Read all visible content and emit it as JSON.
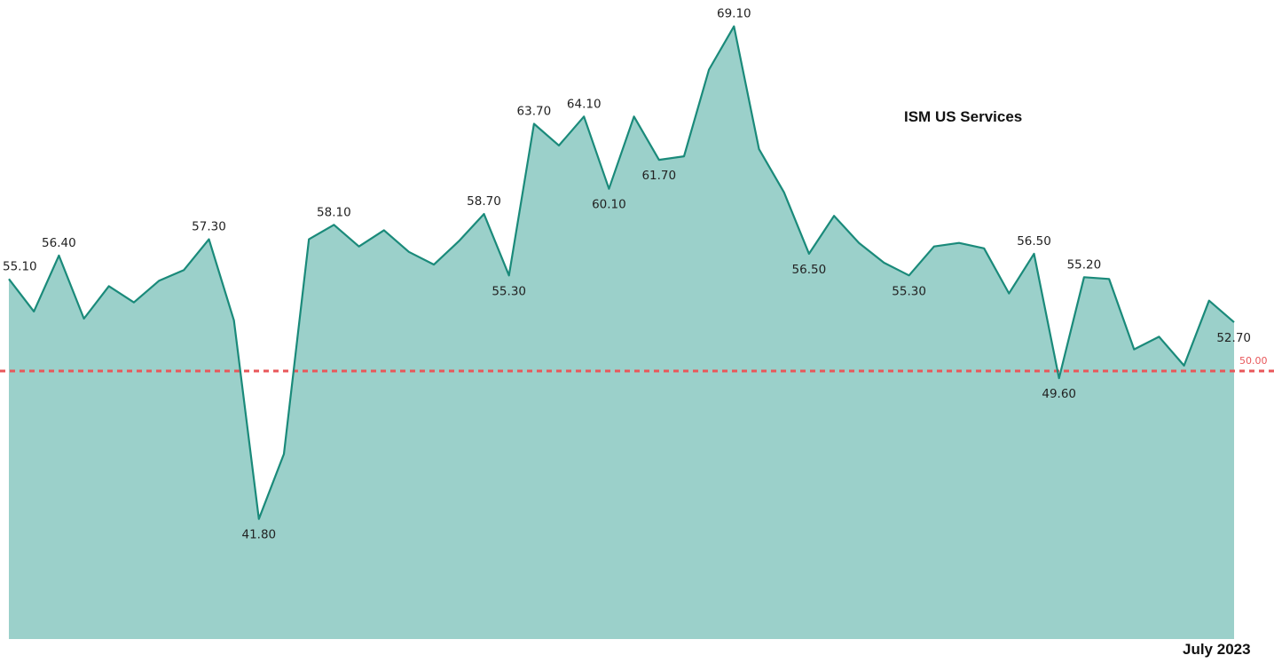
{
  "chart_data": {
    "type": "area",
    "title": "ISM US Services",
    "xlabel": "",
    "ylabel": "",
    "end_date_label": "July 2023",
    "x_start": "2019-08",
    "x_end": "2023-07",
    "ylim": [
      30,
      72
    ],
    "values": [
      55.1,
      53.3,
      56.4,
      52.9,
      54.7,
      53.8,
      55.0,
      55.6,
      57.3,
      52.8,
      41.8,
      45.4,
      57.3,
      58.1,
      56.9,
      57.8,
      56.6,
      55.9,
      57.2,
      58.7,
      55.3,
      63.7,
      62.5,
      64.1,
      60.1,
      64.1,
      61.7,
      61.9,
      66.7,
      69.1,
      62.3,
      59.9,
      56.5,
      58.6,
      57.1,
      56.0,
      55.3,
      56.9,
      57.1,
      56.8,
      54.3,
      56.5,
      49.6,
      55.2,
      55.1,
      51.2,
      51.9,
      50.3,
      53.9,
      52.7
    ],
    "data_labels": [
      {
        "index": 0,
        "text": "55.10",
        "pos": "above"
      },
      {
        "index": 2,
        "text": "56.40",
        "pos": "above"
      },
      {
        "index": 8,
        "text": "57.30",
        "pos": "above"
      },
      {
        "index": 10,
        "text": "41.80",
        "pos": "below"
      },
      {
        "index": 13,
        "text": "58.10",
        "pos": "above"
      },
      {
        "index": 19,
        "text": "58.70",
        "pos": "above"
      },
      {
        "index": 20,
        "text": "55.30",
        "pos": "below"
      },
      {
        "index": 21,
        "text": "63.70",
        "pos": "above"
      },
      {
        "index": 23,
        "text": "64.10",
        "pos": "above"
      },
      {
        "index": 24,
        "text": "60.10",
        "pos": "below"
      },
      {
        "index": 26,
        "text": "61.70",
        "pos": "below"
      },
      {
        "index": 29,
        "text": "69.10",
        "pos": "above"
      },
      {
        "index": 32,
        "text": "56.50",
        "pos": "below"
      },
      {
        "index": 36,
        "text": "55.30",
        "pos": "below"
      },
      {
        "index": 41,
        "text": "56.50",
        "pos": "above"
      },
      {
        "index": 42,
        "text": "49.60",
        "pos": "below"
      },
      {
        "index": 43,
        "text": "55.20",
        "pos": "above"
      },
      {
        "index": 49,
        "text": "52.70",
        "pos": "below"
      }
    ],
    "reference_line": {
      "value": 50.0,
      "label": "50.00",
      "color": "#e8575a"
    },
    "line_color": "#1a8a7a",
    "fill_color": "#9bd0ca",
    "grid": false,
    "legend": "none"
  }
}
